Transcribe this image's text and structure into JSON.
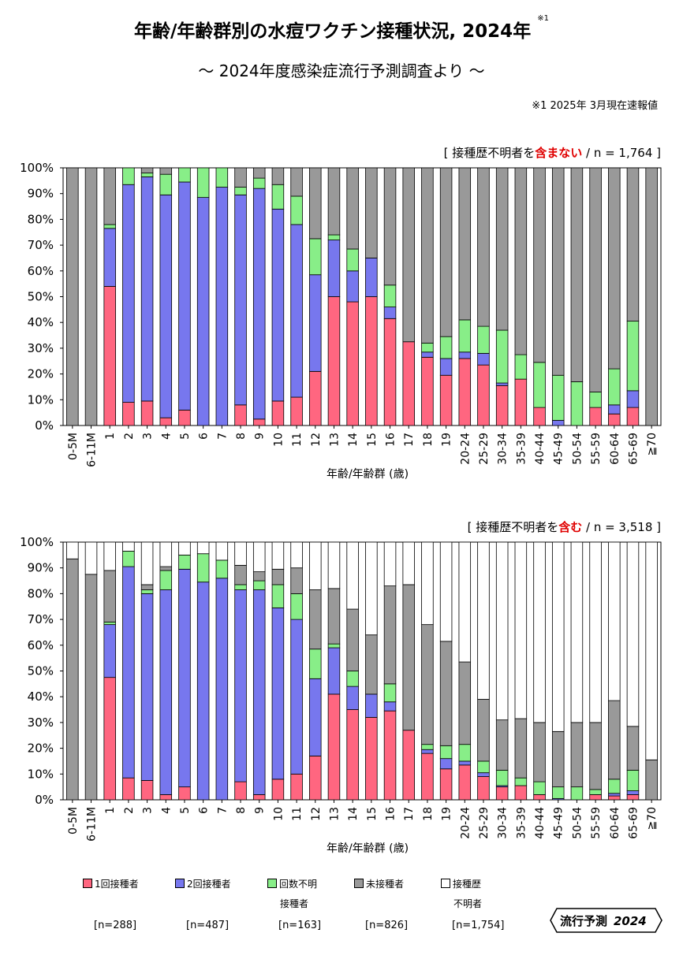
{
  "title": "年齢/年齢群別の水痘ワクチン接種状況, 2024年",
  "title_note_mark": "※1",
  "subtitle": "～ 2024年度感染症流行予測調査より ～",
  "note": "※1 2025年 3月現在速報値",
  "badge_label": "流行予測",
  "badge_year": "2024",
  "colors": {
    "once": "#ff6680",
    "twice": "#7777ee",
    "unknown_count": "#88ee88",
    "unvaccinated": "#999999",
    "history_unknown": "#ffffff"
  },
  "legend": [
    {
      "key": "once",
      "label": "1回接種者",
      "label2": "",
      "n": "[n=288]"
    },
    {
      "key": "twice",
      "label": "2回接種者",
      "label2": "",
      "n": "[n=487]"
    },
    {
      "key": "unknown_count",
      "label": "回数不明",
      "label2": "接種者",
      "n": "[n=163]"
    },
    {
      "key": "unvaccinated",
      "label": "未接種者",
      "label2": "",
      "n": "[n=826]"
    },
    {
      "key": "history_unknown",
      "label": "接種歴",
      "label2": "不明者",
      "n": "[n=1,754]"
    }
  ],
  "chart_data": [
    {
      "type": "stacked-bar",
      "panel_label_pre": "[ 接種歴不明者を",
      "panel_label_em": "含まない",
      "panel_label_post": " / n = 1,764 ]",
      "xlabel": "年齢/年齢群 (歳)",
      "ylabel": "",
      "ylim": [
        0,
        100
      ],
      "yticks": [
        "0%",
        "10%",
        "20%",
        "30%",
        "40%",
        "50%",
        "60%",
        "70%",
        "80%",
        "90%",
        "100%"
      ],
      "categories": [
        "0-5M",
        "6-11M",
        "1",
        "2",
        "3",
        "4",
        "5",
        "6",
        "7",
        "8",
        "9",
        "10",
        "11",
        "12",
        "13",
        "14",
        "15",
        "16",
        "17",
        "18",
        "19",
        "20-24",
        "25-29",
        "30-34",
        "35-39",
        "40-44",
        "45-49",
        "50-54",
        "55-59",
        "60-64",
        "65-69",
        "≧70"
      ],
      "series": [
        {
          "name": "1回接種者",
          "key": "once",
          "values": [
            0,
            0,
            54,
            9,
            9.5,
            3,
            6,
            0,
            0,
            8,
            2.5,
            9.5,
            11,
            21,
            50,
            48,
            50,
            41.5,
            32.5,
            26.5,
            19.5,
            26,
            23.5,
            15.5,
            18,
            7,
            0,
            0,
            7,
            4.5,
            7,
            0
          ]
        },
        {
          "name": "2回接種者",
          "key": "twice",
          "values": [
            0,
            0,
            22.5,
            84.5,
            87,
            86.5,
            88.5,
            88.5,
            92.5,
            81.5,
            89.5,
            74.5,
            67,
            37.5,
            22,
            12,
            15,
            4.5,
            0,
            2,
            6.5,
            2.5,
            4.5,
            1,
            0,
            0,
            2,
            0,
            0,
            3.5,
            6.5,
            0
          ]
        },
        {
          "name": "回数不明接種者",
          "key": "unknown_count",
          "values": [
            0,
            0,
            1.5,
            6.5,
            1.5,
            8,
            5.5,
            11.5,
            7.5,
            3,
            4,
            9.5,
            11,
            14,
            2,
            8.5,
            0,
            8.5,
            0,
            3.5,
            8.5,
            12.5,
            10.5,
            20.5,
            9.5,
            17.5,
            17.5,
            17,
            6,
            14,
            27,
            0
          ]
        },
        {
          "name": "未接種者",
          "key": "unvaccinated",
          "values": [
            100,
            100,
            22,
            0,
            2,
            2.5,
            0,
            0,
            0,
            7.5,
            4,
            6.5,
            11,
            27.5,
            26,
            31.5,
            35,
            45.5,
            67.5,
            68,
            65.5,
            59,
            61.5,
            63,
            72.5,
            75.5,
            80.5,
            83,
            87,
            78,
            59.5,
            100
          ]
        }
      ]
    },
    {
      "type": "stacked-bar",
      "panel_label_pre": "[ 接種歴不明者を",
      "panel_label_em": "含む",
      "panel_label_post": " / n = 3,518 ]",
      "xlabel": "年齢/年齢群 (歳)",
      "ylabel": "",
      "ylim": [
        0,
        100
      ],
      "yticks": [
        "0%",
        "10%",
        "20%",
        "30%",
        "40%",
        "50%",
        "60%",
        "70%",
        "80%",
        "90%",
        "100%"
      ],
      "categories": [
        "0-5M",
        "6-11M",
        "1",
        "2",
        "3",
        "4",
        "5",
        "6",
        "7",
        "8",
        "9",
        "10",
        "11",
        "12",
        "13",
        "14",
        "15",
        "16",
        "17",
        "18",
        "19",
        "20-24",
        "25-29",
        "30-34",
        "35-39",
        "40-44",
        "45-49",
        "50-54",
        "55-59",
        "60-64",
        "65-69",
        "≧70"
      ],
      "series": [
        {
          "name": "1回接種者",
          "key": "once",
          "values": [
            0,
            0,
            47.5,
            8.5,
            7.5,
            2,
            5,
            0,
            0,
            7,
            2,
            8,
            10,
            17,
            41,
            35,
            32,
            34.5,
            27,
            18,
            12,
            13.5,
            9,
            5,
            5.5,
            2,
            0,
            0,
            2,
            1.5,
            2,
            0
          ]
        },
        {
          "name": "2回接種者",
          "key": "twice",
          "values": [
            0,
            0,
            20.5,
            82,
            72.5,
            79.5,
            84.5,
            84.5,
            86,
            74.5,
            79.5,
            66.5,
            60,
            30,
            18,
            9,
            9,
            3.5,
            0,
            1.5,
            4,
            1.5,
            1.5,
            0.5,
            0,
            0,
            0.5,
            0,
            0,
            1,
            1.5,
            0
          ]
        },
        {
          "name": "回数不明接種者",
          "key": "unknown_count",
          "values": [
            0,
            0,
            1,
            6,
            1.5,
            7.5,
            5.5,
            11,
            7,
            2,
            3.5,
            9,
            10,
            11.5,
            1.5,
            6,
            0,
            7,
            0,
            2,
            5,
            6.5,
            4.5,
            6,
            3,
            5,
            4.5,
            5,
            2,
            5.5,
            8,
            0
          ]
        },
        {
          "name": "未接種者",
          "key": "unvaccinated",
          "values": [
            93.5,
            87.5,
            20,
            0,
            2,
            1.5,
            0,
            0,
            0,
            7.5,
            3.5,
            6,
            10,
            23,
            21.5,
            24,
            23,
            38,
            56.5,
            46.5,
            40.5,
            32,
            24,
            19.5,
            23,
            23,
            21.5,
            25,
            26,
            30.5,
            17,
            15.5
          ]
        },
        {
          "name": "接種歴不明者",
          "key": "history_unknown",
          "values": [
            6.5,
            12.5,
            11,
            3.5,
            16.5,
            9.5,
            5,
            4.5,
            7,
            9,
            11.5,
            10.5,
            10,
            18.5,
            18,
            26,
            36,
            17,
            16.5,
            32,
            38.5,
            46.5,
            61,
            69,
            68.5,
            70,
            73.5,
            70,
            70,
            61.5,
            71.5,
            84.5
          ]
        }
      ]
    }
  ]
}
